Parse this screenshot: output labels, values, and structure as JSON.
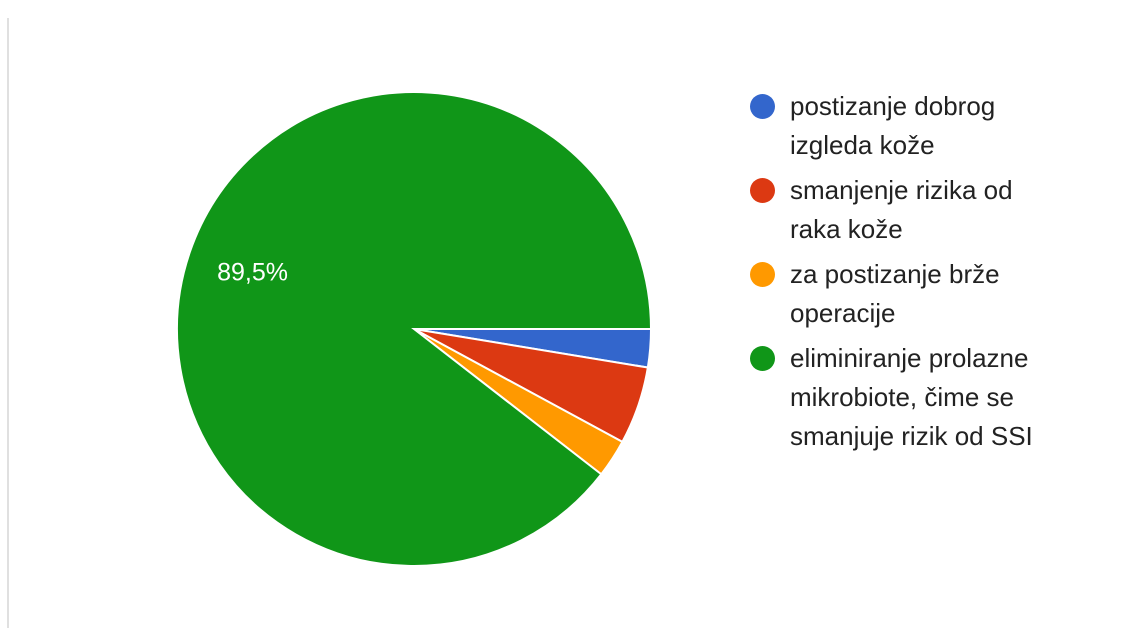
{
  "chart_data": {
    "type": "pie",
    "categories": [
      "postizanje dobrog izgleda kože",
      "smanjenje rizika od raka kože",
      "za postizanje brže operacije",
      "eliminiranje prolazne mikrobiote, čime se smanjuje rizik od SSI"
    ],
    "values": [
      2.6,
      5.3,
      2.6,
      89.5
    ],
    "value_labels": [
      null,
      null,
      null,
      "89,5%"
    ],
    "colors": [
      "#3366cc",
      "#dc3912",
      "#ff9900",
      "#109618"
    ],
    "legend": "right"
  }
}
